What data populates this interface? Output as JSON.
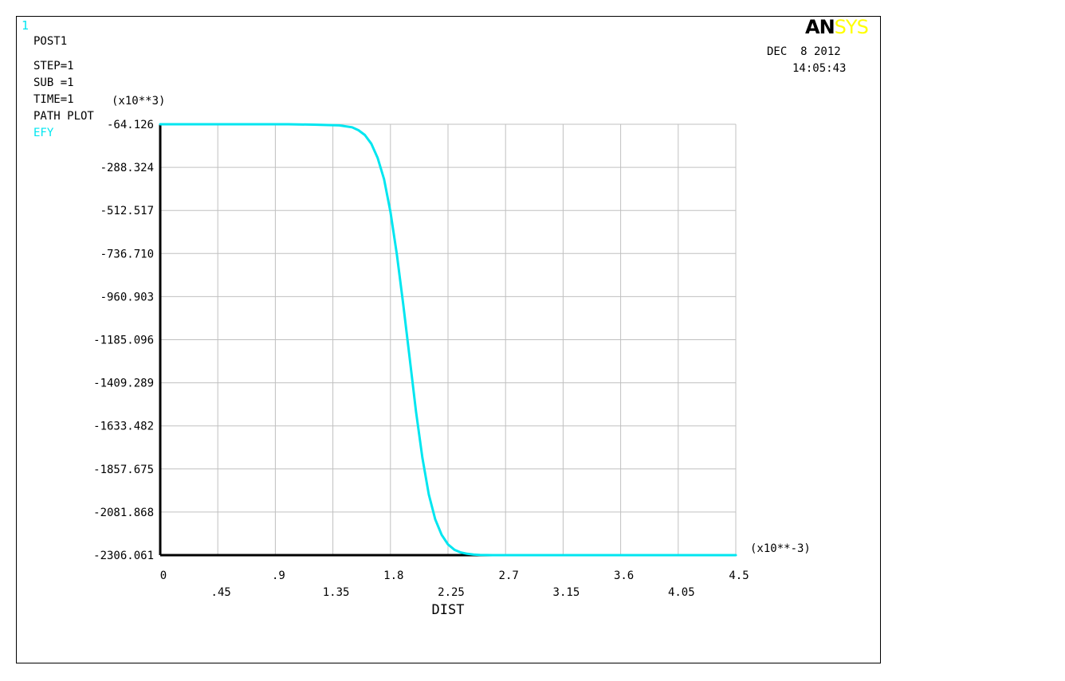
{
  "window_number": "1",
  "header": {
    "lines": [
      "POST1",
      "STEP=1",
      "SUB =1",
      "TIME=1",
      "PATH PLOT"
    ],
    "series_label": "EFY"
  },
  "logo": {
    "part1": "AN",
    "part2": "SYS"
  },
  "date": "DEC  8 2012",
  "time": "14:05:43",
  "colors": {
    "curve": "#00e6f0",
    "grid": "#c0c0c0",
    "axis": "#000000",
    "logo_sys": "#ffff00"
  },
  "chart_data": {
    "type": "line",
    "title": "",
    "xlabel": "DIST",
    "ylabel": "",
    "x_multiplier": "(x10**-3)",
    "y_multiplier": "(x10**3)",
    "xlim": [
      0,
      4.5
    ],
    "ylim": [
      -2306.061,
      -64.126
    ],
    "x_ticks_upper": [
      "0",
      ".9",
      "1.8",
      "2.7",
      "3.6",
      "4.5"
    ],
    "x_ticks_lower": [
      ".45",
      "1.35",
      "2.25",
      "3.15",
      "4.05"
    ],
    "y_ticks": [
      "-64.126",
      "-288.324",
      "-512.517",
      "-736.710",
      "-960.903",
      "-1185.096",
      "-1409.289",
      "-1633.482",
      "-1857.675",
      "-2081.868",
      "-2306.061"
    ],
    "grid": true,
    "series": [
      {
        "name": "EFY",
        "x": [
          0,
          0.5,
          1.0,
          1.2,
          1.4,
          1.5,
          1.55,
          1.6,
          1.65,
          1.7,
          1.75,
          1.8,
          1.85,
          1.9,
          1.95,
          2.0,
          2.05,
          2.1,
          2.15,
          2.2,
          2.25,
          2.3,
          2.35,
          2.4,
          2.45,
          2.5,
          2.6,
          2.7,
          3.0,
          3.5,
          4.0,
          4.5
        ],
        "y": [
          -64.126,
          -64.126,
          -64.13,
          -66,
          -70,
          -80,
          -95,
          -120,
          -165,
          -240,
          -350,
          -520,
          -740,
          -1000,
          -1280,
          -1560,
          -1800,
          -1990,
          -2120,
          -2200,
          -2250,
          -2278,
          -2292,
          -2299,
          -2303,
          -2305,
          -2306,
          -2306.061,
          -2306.061,
          -2306.061,
          -2306.061,
          -2306.061
        ]
      }
    ]
  }
}
